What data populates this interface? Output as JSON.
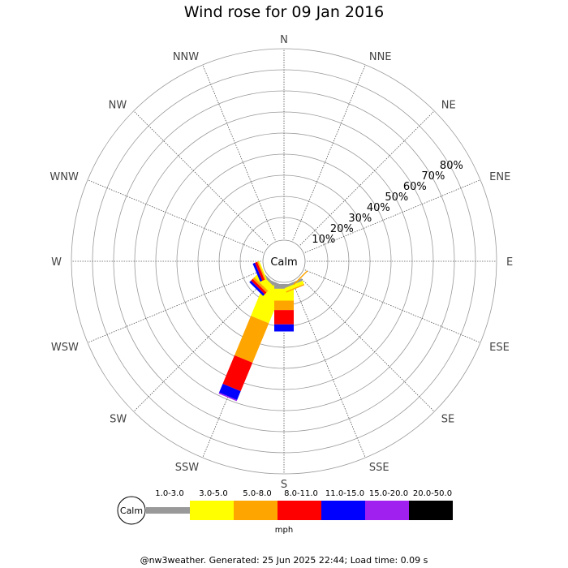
{
  "title": "Wind rose for 09 Jan 2016",
  "footer": "@nw3weather. Generated: 25 Jun 2025 22:44; Load time: 0.09 s",
  "unit_label": "mph",
  "calm_label": "Calm",
  "chart_data": {
    "type": "wind-rose",
    "title": "Wind rose for 09 Jan 2016",
    "directions": [
      "N",
      "NNE",
      "NE",
      "ENE",
      "E",
      "ESE",
      "SE",
      "SSE",
      "S",
      "SSW",
      "SW",
      "WSW",
      "W",
      "WNW",
      "NW",
      "NNW"
    ],
    "radial_ticks": [
      "10%",
      "20%",
      "30%",
      "40%",
      "50%",
      "60%",
      "70%",
      "80%"
    ],
    "radial_max": 80,
    "speed_bins": [
      {
        "label": "1.0-3.0",
        "color": "#999999"
      },
      {
        "label": "3.0-5.0",
        "color": "#ffff00"
      },
      {
        "label": "5.0-8.0",
        "color": "#ffa500"
      },
      {
        "label": "8.0-11.0",
        "color": "#ff0000"
      },
      {
        "label": "11.0-15.0",
        "color": "#0000ff"
      },
      {
        "label": "15.0-20.0",
        "color": "#a020f0"
      },
      {
        "label": "20.0-50.0",
        "color": "#000000"
      }
    ],
    "series": [
      {
        "direction": "SSW",
        "values": [
          1,
          16,
          18,
          13,
          4,
          0.5,
          0
        ]
      },
      {
        "direction": "S",
        "values": [
          2,
          5,
          4,
          6,
          3,
          0,
          0
        ]
      },
      {
        "direction": "SW",
        "values": [
          1,
          3,
          1,
          1,
          1,
          0,
          0
        ]
      },
      {
        "direction": "WSW",
        "values": [
          0,
          0.5,
          0.5,
          1,
          1,
          0,
          0
        ]
      },
      {
        "direction": "SSE",
        "values": [
          1,
          1.5,
          0.5,
          0,
          0,
          0,
          0
        ]
      },
      {
        "direction": "SE",
        "values": [
          0,
          0,
          0.5,
          0,
          0,
          0,
          0
        ]
      }
    ]
  }
}
